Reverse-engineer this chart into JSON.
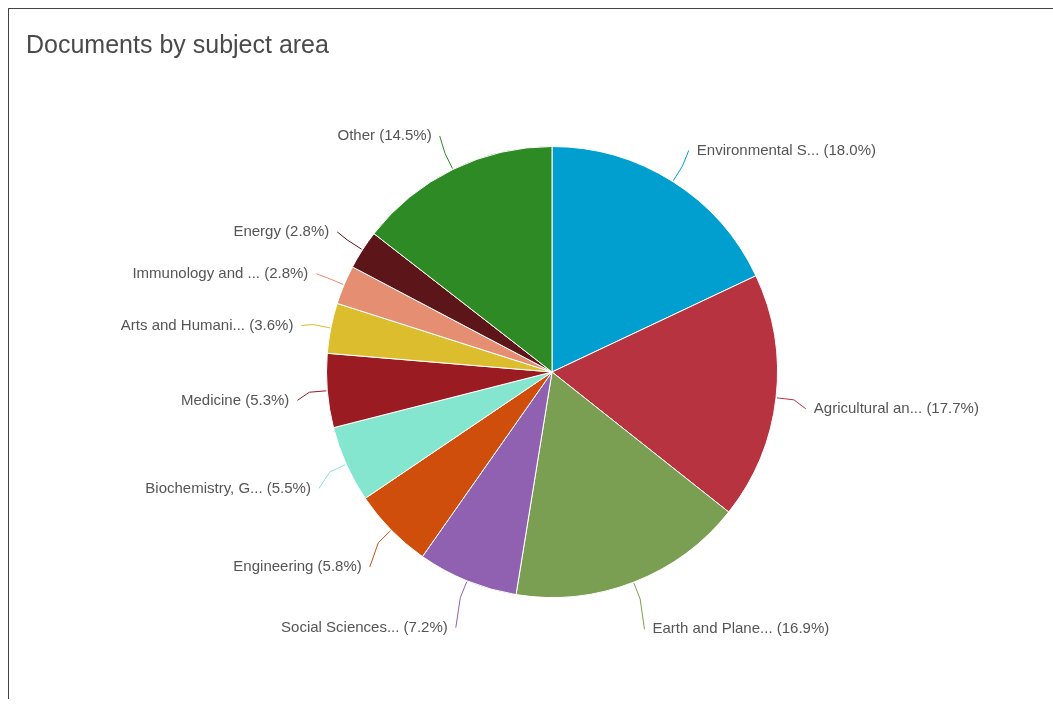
{
  "chart_data": {
    "type": "pie",
    "title": "Documents by subject area",
    "categories": [
      "Environmental S...",
      "Agricultural an...",
      "Earth and Plane...",
      "Social Sciences...",
      "Engineering",
      "Biochemistry, G...",
      "Medicine",
      "Arts and Humani...",
      "Immunology and ...",
      "Energy",
      "Other"
    ],
    "values": [
      18.0,
      17.7,
      16.9,
      7.2,
      5.8,
      5.5,
      5.3,
      3.6,
      2.8,
      2.8,
      14.5
    ],
    "value_labels": [
      "(18.0%)",
      "(17.7%)",
      "(16.9%)",
      "(7.2%)",
      "(5.8%)",
      "(5.5%)",
      "(5.3%)",
      "(3.6%)",
      "(2.8%)",
      "(2.8%)",
      "(14.5%)"
    ],
    "colors": [
      "#009fcf",
      "#b83340",
      "#7b9f52",
      "#9061b0",
      "#d04e0c",
      "#84e6cf",
      "#9b1b23",
      "#dbbd2e",
      "#e68e71",
      "#5c1519",
      "#2e8a24"
    ]
  }
}
